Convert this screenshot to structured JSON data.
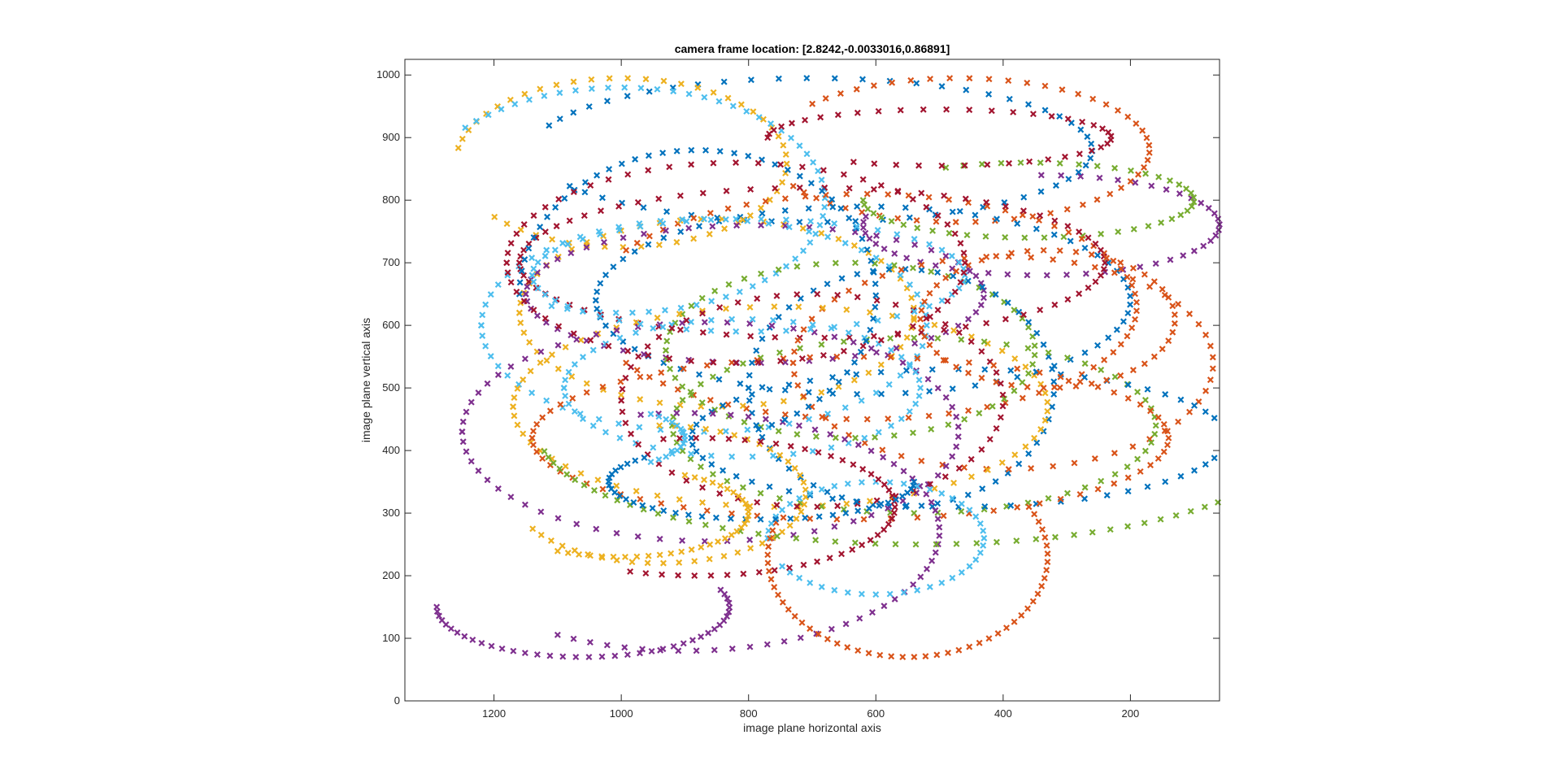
{
  "chart_data": {
    "type": "scatter",
    "title": "camera frame location: [2.8242,-0.0033016,0.86891]",
    "xlabel": "image plane horizontal axis",
    "ylabel": "image plane vertical axis",
    "xlim": [
      1340,
      60
    ],
    "ylim": [
      0,
      1025
    ],
    "x_reversed": true,
    "xticks": [
      1200,
      1000,
      800,
      600,
      400,
      200
    ],
    "yticks": [
      0,
      100,
      200,
      300,
      400,
      500,
      600,
      700,
      800,
      900,
      1000
    ],
    "marker": "x",
    "grid": false,
    "series": [
      {
        "color": "#0072BD",
        "type": "ellipse",
        "cx": 700,
        "cy": 880,
        "rx": 440,
        "ry": 115,
        "t0": 20,
        "t1": 330,
        "n": 55
      },
      {
        "color": "#D95319",
        "type": "ellipse",
        "cx": 470,
        "cy": 880,
        "rx": 300,
        "ry": 115,
        "t0": 40,
        "t1": 330,
        "n": 50
      },
      {
        "color": "#EDB120",
        "type": "ellipse",
        "cx": 1000,
        "cy": 860,
        "rx": 260,
        "ry": 135,
        "t0": 10,
        "t1": 320,
        "n": 50
      },
      {
        "color": "#7E2F8E",
        "type": "ellipse",
        "cx": 340,
        "cy": 760,
        "rx": 280,
        "ry": 80,
        "t0": 90,
        "t1": 370,
        "n": 45
      },
      {
        "color": "#77AC30",
        "type": "ellipse",
        "cx": 360,
        "cy": 800,
        "rx": 260,
        "ry": 60,
        "t0": 60,
        "t1": 360,
        "n": 45
      },
      {
        "color": "#4DBEEE",
        "type": "ellipse",
        "cx": 1000,
        "cy": 800,
        "rx": 320,
        "ry": 180,
        "t0": 40,
        "t1": 290,
        "n": 55
      },
      {
        "color": "#A2142F",
        "type": "ellipse",
        "cx": 500,
        "cy": 900,
        "rx": 270,
        "ry": 45,
        "t0": 0,
        "t1": 300,
        "n": 40
      },
      {
        "color": "#0072BD",
        "type": "ellipse",
        "cx": 620,
        "cy": 640,
        "rx": 420,
        "ry": 150,
        "t0": 0,
        "t1": 360,
        "n": 70
      },
      {
        "color": "#D95319",
        "type": "ellipse",
        "cx": 620,
        "cy": 630,
        "rx": 430,
        "ry": 180,
        "t0": 30,
        "t1": 330,
        "n": 70
      },
      {
        "color": "#EDB120",
        "type": "ellipse",
        "cx": 850,
        "cy": 620,
        "rx": 310,
        "ry": 150,
        "t0": 0,
        "t1": 360,
        "n": 60
      },
      {
        "color": "#7E2F8E",
        "type": "ellipse",
        "cx": 790,
        "cy": 650,
        "rx": 360,
        "ry": 110,
        "t0": 0,
        "t1": 360,
        "n": 60
      },
      {
        "color": "#77AC30",
        "type": "ellipse",
        "cx": 640,
        "cy": 560,
        "rx": 290,
        "ry": 140,
        "t0": 0,
        "t1": 360,
        "n": 60
      },
      {
        "color": "#4DBEEE",
        "type": "ellipse",
        "cx": 870,
        "cy": 600,
        "rx": 350,
        "ry": 170,
        "t0": 0,
        "t1": 360,
        "n": 65
      },
      {
        "color": "#A2142F",
        "type": "ellipse",
        "cx": 700,
        "cy": 700,
        "rx": 460,
        "ry": 120,
        "t0": 0,
        "t1": 360,
        "n": 75
      },
      {
        "color": "#0072BD",
        "type": "ellipse",
        "cx": 560,
        "cy": 500,
        "rx": 240,
        "ry": 190,
        "t0": 0,
        "t1": 360,
        "n": 60
      },
      {
        "color": "#D95319",
        "type": "ellipse",
        "cx": 400,
        "cy": 540,
        "rx": 330,
        "ry": 170,
        "t0": 0,
        "t1": 360,
        "n": 60
      },
      {
        "color": "#EDB120",
        "type": "ellipse",
        "cx": 750,
        "cy": 470,
        "rx": 420,
        "ry": 160,
        "t0": 0,
        "t1": 360,
        "n": 70
      },
      {
        "color": "#7E2F8E",
        "type": "ellipse",
        "cx": 860,
        "cy": 430,
        "rx": 390,
        "ry": 175,
        "t0": 0,
        "t1": 360,
        "n": 70
      },
      {
        "color": "#77AC30",
        "type": "ellipse",
        "cx": 540,
        "cy": 440,
        "rx": 380,
        "ry": 140,
        "t0": 0,
        "t1": 360,
        "n": 65
      },
      {
        "color": "#4DBEEE",
        "type": "ellipse",
        "cx": 810,
        "cy": 500,
        "rx": 280,
        "ry": 110,
        "t0": 0,
        "t1": 360,
        "n": 55
      },
      {
        "color": "#A2142F",
        "type": "ellipse",
        "cx": 700,
        "cy": 480,
        "rx": 300,
        "ry": 170,
        "t0": 0,
        "t1": 360,
        "n": 60
      },
      {
        "color": "#0072BD",
        "type": "ellipse",
        "cx": 470,
        "cy": 420,
        "rx": 420,
        "ry": 110,
        "t0": 0,
        "t1": 360,
        "n": 65
      },
      {
        "color": "#D95319",
        "type": "ellipse",
        "cx": 640,
        "cy": 420,
        "rx": 500,
        "ry": 130,
        "t0": 0,
        "t1": 360,
        "n": 75
      },
      {
        "color": "#EDB120",
        "type": "ellipse",
        "cx": 940,
        "cy": 330,
        "rx": 230,
        "ry": 110,
        "t0": 90,
        "t1": 330,
        "n": 40
      },
      {
        "color": "#7E2F8E",
        "type": "ellipse",
        "cx": 900,
        "cy": 270,
        "rx": 400,
        "ry": 190,
        "t0": 80,
        "t1": 300,
        "n": 55
      },
      {
        "color": "#77AC30",
        "type": "ellipse",
        "cx": 530,
        "cy": 430,
        "rx": 600,
        "ry": 180,
        "t0": 170,
        "t1": 350,
        "n": 60
      },
      {
        "color": "#4DBEEE",
        "type": "ellipse",
        "cx": 600,
        "cy": 260,
        "rx": 170,
        "ry": 90,
        "t0": 0,
        "t1": 330,
        "n": 45
      },
      {
        "color": "#A2142F",
        "type": "ellipse",
        "cx": 880,
        "cy": 310,
        "rx": 310,
        "ry": 110,
        "t0": 80,
        "t1": 290,
        "n": 45
      },
      {
        "color": "#D95319",
        "type": "ellipse",
        "cx": 550,
        "cy": 230,
        "rx": 220,
        "ry": 160,
        "t0": 150,
        "t1": 380,
        "n": 50
      },
      {
        "color": "#7E2F8E",
        "type": "ellipse",
        "cx": 1060,
        "cy": 150,
        "rx": 230,
        "ry": 80,
        "t0": 160,
        "t1": 360,
        "n": 40
      },
      {
        "color": "#0072BD",
        "type": "ellipse",
        "cx": 780,
        "cy": 350,
        "rx": 240,
        "ry": 60,
        "t0": 180,
        "t1": 400,
        "n": 40
      },
      {
        "color": "#4DBEEE",
        "type": "ellipse",
        "cx": 1050,
        "cy": 420,
        "rx": 150,
        "ry": 50,
        "t0": 130,
        "t1": 230,
        "n": 16
      },
      {
        "color": "#EDB120",
        "type": "ellipse",
        "cx": 1000,
        "cy": 300,
        "rx": 200,
        "ry": 70,
        "t0": 120,
        "t1": 300,
        "n": 35
      },
      {
        "color": "#D95319",
        "type": "ellipse",
        "cx": 330,
        "cy": 610,
        "rx": 200,
        "ry": 110,
        "t0": 0,
        "t1": 360,
        "n": 50
      },
      {
        "color": "#0072BD",
        "type": "ellipse",
        "cx": 880,
        "cy": 650,
        "rx": 280,
        "ry": 230,
        "t0": 0,
        "t1": 250,
        "n": 55
      },
      {
        "color": "#4DBEEE",
        "type": "ellipse",
        "cx": 800,
        "cy": 680,
        "rx": 340,
        "ry": 90,
        "t0": 0,
        "t1": 360,
        "n": 55
      },
      {
        "color": "#A2142F",
        "type": "ellipse",
        "cx": 820,
        "cy": 700,
        "rx": 360,
        "ry": 160,
        "t0": 0,
        "t1": 360,
        "n": 65
      }
    ]
  }
}
